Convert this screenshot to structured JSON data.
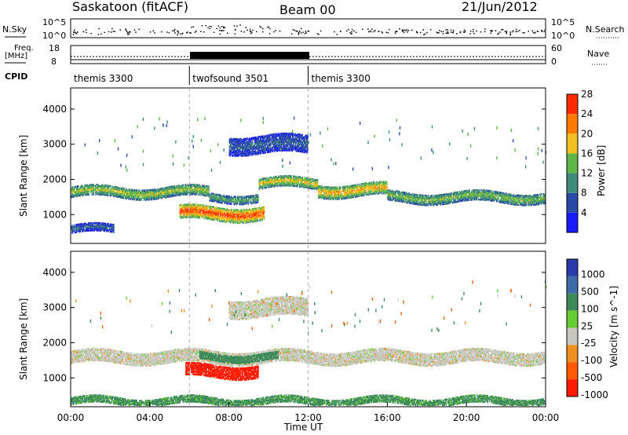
{
  "header": {
    "station": "Saskatoon (fitACF)",
    "beam": "Beam 00",
    "date": "21/Jun/2012"
  },
  "top_panels": {
    "nsky_label": "N.Sky",
    "nsky_ticks": [
      "10^5",
      "10^0"
    ],
    "nsearch_label": "N.Search",
    "nsearch_ticks": [
      "10^5",
      "10^0"
    ],
    "freq_label": "Freq.",
    "freq_unit": "[MHz]",
    "freq_ticks": [
      "18",
      "8"
    ],
    "nave_label": "Nave",
    "nave_ticks": [
      "60",
      "0"
    ],
    "cpid_label": "CPID",
    "cpid_segments": [
      {
        "name": "themis 3300",
        "start_hour": 0,
        "end_hour": 6
      },
      {
        "name": "twofsound 3501",
        "start_hour": 6,
        "end_hour": 12
      },
      {
        "name": "themis 3300",
        "start_hour": 12,
        "end_hour": 24
      }
    ]
  },
  "chart_data": [
    {
      "type": "heatmap",
      "panel": "power",
      "ylabel": "Slant Range [km]",
      "yticks": [
        "1000",
        "2000",
        "3000",
        "4000"
      ],
      "ylim": [
        180,
        4600
      ],
      "xlim_hours": [
        0,
        24
      ],
      "colorbar_label": "Power [dB]",
      "colorbar_ticks": [
        "4",
        "8",
        "12",
        "16",
        "20",
        "24",
        "28"
      ],
      "colorbar_range": [
        0,
        30
      ],
      "colors": [
        "#1a1aff",
        "#2a4aa8",
        "#3f8a78",
        "#5fb548",
        "#f0c020",
        "#ff7a00",
        "#ff2a00"
      ],
      "echo_bands": [
        {
          "start_h": 0.0,
          "end_h": 7.0,
          "center_km": 1650,
          "width_km": 300,
          "power_db": 18
        },
        {
          "start_h": 7.0,
          "end_h": 9.5,
          "center_km": 1500,
          "width_km": 250,
          "power_db": 14
        },
        {
          "start_h": 9.5,
          "end_h": 12.5,
          "center_km": 1900,
          "width_km": 300,
          "power_db": 20
        },
        {
          "start_h": 12.5,
          "end_h": 16.0,
          "center_km": 1700,
          "width_km": 350,
          "power_db": 22
        },
        {
          "start_h": 16.0,
          "end_h": 24.0,
          "center_km": 1500,
          "width_km": 300,
          "power_db": 16
        },
        {
          "start_h": 5.5,
          "end_h": 9.8,
          "center_km": 1050,
          "width_km": 400,
          "power_db": 28
        },
        {
          "start_h": 0.0,
          "end_h": 2.2,
          "center_km": 600,
          "width_km": 250,
          "power_db": 8
        },
        {
          "start_h": 8.0,
          "end_h": 12.0,
          "center_km": 3000,
          "width_km": 500,
          "power_db": 8
        }
      ]
    },
    {
      "type": "heatmap",
      "panel": "velocity",
      "ylabel": "Slant Range [km]",
      "yticks": [
        "1000",
        "2000",
        "3000",
        "4000"
      ],
      "ylim": [
        180,
        4600
      ],
      "xlim_hours": [
        0,
        24
      ],
      "xticks": [
        "00:00",
        "04:00",
        "08:00",
        "12:00",
        "16:00",
        "20:00",
        "00:00"
      ],
      "xlabel": "Time UT",
      "colorbar_label": "Velocity [m s^-1]",
      "colorbar_ticks": [
        "1000",
        "500",
        "100",
        "25",
        "-25",
        "-100",
        "-500",
        "-1000"
      ],
      "colors": [
        "#2a3aa8",
        "#3f6aa8",
        "#3c8a5a",
        "#66cc33",
        "#c8c8c0",
        "#f09020",
        "#ff5a00",
        "#ff1a00"
      ],
      "echo_bands": [
        {
          "start_h": 0.0,
          "end_h": 24.0,
          "center_km": 1600,
          "width_km": 350,
          "velocity": 0
        },
        {
          "start_h": 5.8,
          "end_h": 9.5,
          "center_km": 1200,
          "width_km": 350,
          "velocity": -400
        },
        {
          "start_h": 6.5,
          "end_h": 10.5,
          "center_km": 1600,
          "width_km": 200,
          "velocity": 200
        },
        {
          "start_h": 0.0,
          "end_h": 24.0,
          "center_km": 350,
          "width_km": 200,
          "velocity": 80
        },
        {
          "start_h": 8.0,
          "end_h": 12.0,
          "center_km": 3000,
          "width_km": 500,
          "velocity": 0
        }
      ]
    }
  ]
}
